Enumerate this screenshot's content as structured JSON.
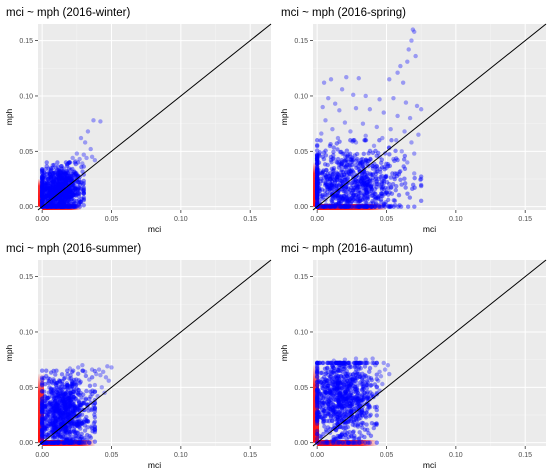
{
  "chart_data": [
    {
      "type": "scatter",
      "title": "mci ~ mph (2016-winter)",
      "xlabel": "mci",
      "ylabel": "mph",
      "xlim": [
        -0.003,
        0.165
      ],
      "ylim": [
        -0.003,
        0.165
      ],
      "xticks": [
        "0.00",
        "0.05",
        "0.10",
        "0.15"
      ],
      "yticks": [
        "0.00",
        "0.05",
        "0.10",
        "0.15"
      ],
      "reference_line": "y = x",
      "point_color": "#0000ff",
      "rug_color": "#ff0000",
      "grid": true,
      "background": "#ebebeb",
      "cloud": {
        "x_range": [
          0.0,
          0.03
        ],
        "y_range": [
          0.0,
          0.04
        ],
        "center": [
          0.012,
          0.014
        ]
      },
      "points": [
        [
          0.028,
          0.062
        ],
        [
          0.031,
          0.058
        ],
        [
          0.035,
          0.052
        ],
        [
          0.033,
          0.068
        ],
        [
          0.037,
          0.078
        ],
        [
          0.042,
          0.077
        ],
        [
          0.025,
          0.048
        ],
        [
          0.03,
          0.047
        ],
        [
          0.022,
          0.044
        ],
        [
          0.032,
          0.044
        ],
        [
          0.036,
          0.045
        ],
        [
          0.027,
          0.043
        ],
        [
          0.02,
          0.04
        ],
        [
          0.024,
          0.041
        ],
        [
          0.018,
          0.038
        ],
        [
          0.038,
          0.042
        ],
        [
          0.029,
          0.039
        ]
      ],
      "rug_x_max": 0.028,
      "rug_y_max": 0.025
    },
    {
      "type": "scatter",
      "title": "mci ~ mph (2016-spring)",
      "xlabel": "mci",
      "ylabel": "mph",
      "xlim": [
        -0.003,
        0.165
      ],
      "ylim": [
        -0.003,
        0.165
      ],
      "xticks": [
        "0.00",
        "0.05",
        "0.10",
        "0.15"
      ],
      "yticks": [
        "0.00",
        "0.05",
        "0.10",
        "0.15"
      ],
      "reference_line": "y = x",
      "point_color": "#0000ff",
      "rug_color": "#ff0000",
      "grid": true,
      "background": "#ebebeb",
      "cloud": {
        "x_range": [
          0.0,
          0.075
        ],
        "y_range": [
          0.0,
          0.06
        ],
        "center": [
          0.022,
          0.02
        ]
      },
      "points": [
        [
          0.069,
          0.16
        ],
        [
          0.07,
          0.158
        ],
        [
          0.068,
          0.15
        ],
        [
          0.066,
          0.142
        ],
        [
          0.071,
          0.136
        ],
        [
          0.065,
          0.131
        ],
        [
          0.06,
          0.127
        ],
        [
          0.058,
          0.121
        ],
        [
          0.052,
          0.115
        ],
        [
          0.062,
          0.112
        ],
        [
          0.03,
          0.116
        ],
        [
          0.021,
          0.117
        ],
        [
          0.01,
          0.115
        ],
        [
          0.005,
          0.112
        ],
        [
          0.018,
          0.106
        ],
        [
          0.026,
          0.101
        ],
        [
          0.035,
          0.1
        ],
        [
          0.045,
          0.097
        ],
        [
          0.055,
          0.098
        ],
        [
          0.064,
          0.094
        ],
        [
          0.072,
          0.091
        ],
        [
          0.075,
          0.088
        ],
        [
          0.008,
          0.098
        ],
        [
          0.013,
          0.093
        ],
        [
          0.004,
          0.09
        ],
        [
          0.016,
          0.087
        ],
        [
          0.028,
          0.089
        ],
        [
          0.038,
          0.088
        ],
        [
          0.048,
          0.085
        ],
        [
          0.058,
          0.082
        ],
        [
          0.067,
          0.08
        ],
        [
          0.006,
          0.078
        ],
        [
          0.02,
          0.076
        ],
        [
          0.033,
          0.075
        ],
        [
          0.043,
          0.072
        ],
        [
          0.053,
          0.07
        ],
        [
          0.063,
          0.068
        ],
        [
          0.073,
          0.065
        ],
        [
          0.011,
          0.07
        ],
        [
          0.024,
          0.068
        ],
        [
          0.035,
          0.064
        ],
        [
          0.047,
          0.062
        ],
        [
          0.057,
          0.06
        ],
        [
          0.068,
          0.058
        ],
        [
          0.015,
          0.062
        ],
        [
          0.028,
          0.058
        ],
        [
          0.041,
          0.055
        ],
        [
          0.052,
          0.053
        ],
        [
          0.061,
          0.05
        ],
        [
          0.07,
          0.048
        ],
        [
          0.003,
          0.066
        ],
        [
          0.045,
          0.045
        ],
        [
          0.055,
          0.043
        ],
        [
          0.065,
          0.04
        ],
        [
          0.05,
          0.035
        ],
        [
          0.06,
          0.032
        ],
        [
          0.07,
          0.03
        ],
        [
          0.075,
          0.025
        ]
      ],
      "rug_x_max": 0.05,
      "rug_y_max": 0.04
    },
    {
      "type": "scatter",
      "title": "mci ~ mph (2016-summer)",
      "xlabel": "mci",
      "ylabel": "mph",
      "xlim": [
        -0.003,
        0.165
      ],
      "ylim": [
        -0.003,
        0.165
      ],
      "xticks": [
        "0.00",
        "0.05",
        "0.10",
        "0.15"
      ],
      "yticks": [
        "0.00",
        "0.05",
        "0.10",
        "0.15"
      ],
      "reference_line": "y = x",
      "point_color": "#0000ff",
      "rug_color": "#ff0000",
      "grid": true,
      "background": "#ebebeb",
      "cloud": {
        "x_range": [
          0.0,
          0.038
        ],
        "y_range": [
          0.0,
          0.065
        ],
        "center": [
          0.015,
          0.025
        ]
      },
      "points": [
        [
          0.041,
          0.066
        ],
        [
          0.047,
          0.069
        ],
        [
          0.05,
          0.068
        ],
        [
          0.042,
          0.061
        ],
        [
          0.044,
          0.064
        ],
        [
          0.026,
          0.068
        ],
        [
          0.029,
          0.07
        ],
        [
          0.036,
          0.066
        ],
        [
          0.039,
          0.062
        ],
        [
          0.046,
          0.059
        ],
        [
          0.048,
          0.056
        ],
        [
          0.038,
          0.052
        ],
        [
          0.043,
          0.05
        ],
        [
          0.045,
          0.045
        ],
        [
          0.04,
          0.042
        ],
        [
          0.034,
          0.057
        ],
        [
          0.031,
          0.064
        ],
        [
          0.02,
          0.067
        ]
      ],
      "rug_x_max": 0.038,
      "rug_y_max": 0.062
    },
    {
      "type": "scatter",
      "title": "mci ~ mph (2016-autumn)",
      "xlabel": "mci",
      "ylabel": "mph",
      "xlim": [
        -0.003,
        0.165
      ],
      "ylim": [
        -0.003,
        0.165
      ],
      "xticks": [
        "0.00",
        "0.05",
        "0.10",
        "0.15"
      ],
      "yticks": [
        "0.00",
        "0.05",
        "0.10",
        "0.15"
      ],
      "reference_line": "y = x",
      "point_color": "#0000ff",
      "rug_color": "#ff0000",
      "grid": true,
      "background": "#ebebeb",
      "cloud": {
        "x_range": [
          0.0,
          0.043
        ],
        "y_range": [
          0.0,
          0.072
        ],
        "center": [
          0.018,
          0.04
        ]
      },
      "points": [
        [
          0.048,
          0.072
        ],
        [
          0.051,
          0.07
        ],
        [
          0.049,
          0.066
        ],
        [
          0.045,
          0.064
        ],
        [
          0.046,
          0.06
        ],
        [
          0.044,
          0.056
        ],
        [
          0.047,
          0.053
        ],
        [
          0.043,
          0.05
        ],
        [
          0.045,
          0.047
        ],
        [
          0.035,
          0.075
        ],
        [
          0.04,
          0.076
        ],
        [
          0.028,
          0.076
        ],
        [
          0.02,
          0.075
        ],
        [
          0.012,
          0.074
        ],
        [
          0.052,
          0.062
        ],
        [
          0.042,
          0.07
        ]
      ],
      "rug_x_max": 0.043,
      "rug_y_max": 0.07
    }
  ]
}
